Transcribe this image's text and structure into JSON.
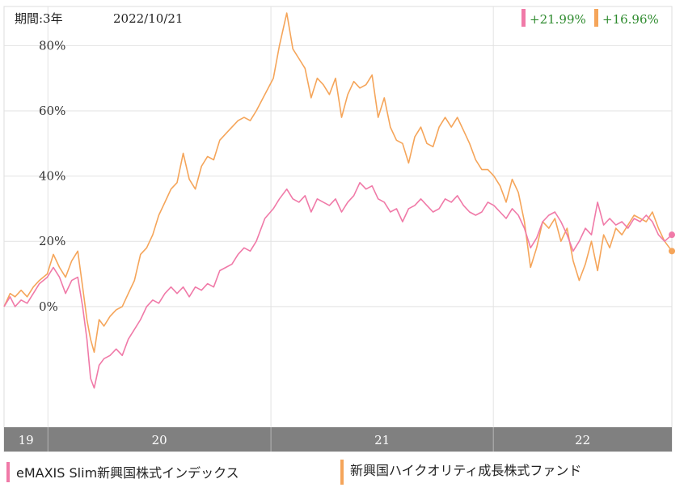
{
  "header": {
    "period_label": "期間:3年",
    "date": "2022/10/21"
  },
  "returns": [
    {
      "color": "#f07aa8",
      "value": "+21.99%"
    },
    {
      "color": "#f5a55a",
      "value": "+16.96%"
    }
  ],
  "chart_data": {
    "type": "line",
    "title": "",
    "xlabel": "",
    "ylabel": "",
    "ylim": [
      -37,
      92
    ],
    "xlim": [
      "2019-10-21",
      "2022-10-21"
    ],
    "yticks": [
      0,
      20,
      40,
      60,
      80
    ],
    "ytick_labels": [
      "0%",
      "20%",
      "40%",
      "60%",
      "80%"
    ],
    "xtick_labels": [
      "19",
      "20",
      "21",
      "22"
    ],
    "year_dividers": [
      "2020-01-01",
      "2021-01-01",
      "2022-01-01"
    ],
    "grid": true,
    "legend_position": "bottom",
    "series": [
      {
        "name": "eMAXIS Slim新興国株式インデックス",
        "color": "#f07aa8",
        "points": [
          [
            "2019-10-21",
            0
          ],
          [
            "2019-10-31",
            3
          ],
          [
            "2019-11-08",
            0
          ],
          [
            "2019-11-18",
            2
          ],
          [
            "2019-11-28",
            1
          ],
          [
            "2019-12-08",
            4
          ],
          [
            "2019-12-18",
            7
          ],
          [
            "2019-12-31",
            9
          ],
          [
            "2020-01-10",
            12
          ],
          [
            "2020-01-20",
            9
          ],
          [
            "2020-01-30",
            4
          ],
          [
            "2020-02-09",
            8
          ],
          [
            "2020-02-19",
            9
          ],
          [
            "2020-02-27",
            0
          ],
          [
            "2020-03-05",
            -10
          ],
          [
            "2020-03-11",
            -22
          ],
          [
            "2020-03-17",
            -25
          ],
          [
            "2020-03-25",
            -18
          ],
          [
            "2020-04-02",
            -16
          ],
          [
            "2020-04-12",
            -15
          ],
          [
            "2020-04-22",
            -13
          ],
          [
            "2020-05-02",
            -15
          ],
          [
            "2020-05-12",
            -10
          ],
          [
            "2020-05-22",
            -7
          ],
          [
            "2020-06-01",
            -4
          ],
          [
            "2020-06-11",
            0
          ],
          [
            "2020-06-21",
            2
          ],
          [
            "2020-07-01",
            1
          ],
          [
            "2020-07-11",
            4
          ],
          [
            "2020-07-21",
            6
          ],
          [
            "2020-07-31",
            4
          ],
          [
            "2020-08-10",
            6
          ],
          [
            "2020-08-20",
            3
          ],
          [
            "2020-08-30",
            6
          ],
          [
            "2020-09-09",
            5
          ],
          [
            "2020-09-19",
            7
          ],
          [
            "2020-09-29",
            6
          ],
          [
            "2020-10-09",
            11
          ],
          [
            "2020-10-19",
            12
          ],
          [
            "2020-10-29",
            13
          ],
          [
            "2020-11-08",
            16
          ],
          [
            "2020-11-18",
            18
          ],
          [
            "2020-11-28",
            17
          ],
          [
            "2020-12-08",
            20
          ],
          [
            "2020-12-22",
            27
          ],
          [
            "2021-01-05",
            30
          ],
          [
            "2021-01-15",
            33
          ],
          [
            "2021-01-27",
            36
          ],
          [
            "2021-02-06",
            33
          ],
          [
            "2021-02-16",
            32
          ],
          [
            "2021-02-26",
            34
          ],
          [
            "2021-03-08",
            29
          ],
          [
            "2021-03-18",
            33
          ],
          [
            "2021-03-28",
            32
          ],
          [
            "2021-04-07",
            31
          ],
          [
            "2021-04-17",
            33
          ],
          [
            "2021-04-27",
            29
          ],
          [
            "2021-05-07",
            32
          ],
          [
            "2021-05-17",
            34
          ],
          [
            "2021-05-27",
            38
          ],
          [
            "2021-06-06",
            36
          ],
          [
            "2021-06-16",
            37
          ],
          [
            "2021-06-26",
            33
          ],
          [
            "2021-07-06",
            32
          ],
          [
            "2021-07-16",
            29
          ],
          [
            "2021-07-26",
            30
          ],
          [
            "2021-08-05",
            26
          ],
          [
            "2021-08-15",
            30
          ],
          [
            "2021-08-25",
            31
          ],
          [
            "2021-09-04",
            33
          ],
          [
            "2021-09-14",
            31
          ],
          [
            "2021-09-24",
            29
          ],
          [
            "2021-10-04",
            30
          ],
          [
            "2021-10-14",
            33
          ],
          [
            "2021-10-24",
            32
          ],
          [
            "2021-11-03",
            34
          ],
          [
            "2021-11-13",
            31
          ],
          [
            "2021-11-23",
            29
          ],
          [
            "2021-12-03",
            28
          ],
          [
            "2021-12-13",
            29
          ],
          [
            "2021-12-23",
            32
          ],
          [
            "2022-01-02",
            31
          ],
          [
            "2022-01-12",
            29
          ],
          [
            "2022-01-22",
            27
          ],
          [
            "2022-02-01",
            30
          ],
          [
            "2022-02-11",
            28
          ],
          [
            "2022-02-21",
            24
          ],
          [
            "2022-03-03",
            18
          ],
          [
            "2022-03-13",
            21
          ],
          [
            "2022-03-23",
            26
          ],
          [
            "2022-04-02",
            28
          ],
          [
            "2022-04-12",
            29
          ],
          [
            "2022-04-22",
            26
          ],
          [
            "2022-05-02",
            22
          ],
          [
            "2022-05-12",
            17
          ],
          [
            "2022-05-22",
            20
          ],
          [
            "2022-06-01",
            24
          ],
          [
            "2022-06-11",
            22
          ],
          [
            "2022-06-21",
            32
          ],
          [
            "2022-07-01",
            25
          ],
          [
            "2022-07-11",
            27
          ],
          [
            "2022-07-21",
            25
          ],
          [
            "2022-07-31",
            26
          ],
          [
            "2022-08-10",
            24
          ],
          [
            "2022-08-20",
            27
          ],
          [
            "2022-08-30",
            26
          ],
          [
            "2022-09-09",
            28
          ],
          [
            "2022-09-19",
            26
          ],
          [
            "2022-09-29",
            22
          ],
          [
            "2022-10-09",
            20
          ],
          [
            "2022-10-21",
            22
          ]
        ]
      },
      {
        "name": "新興国ハイクオリティ成長株式ファンド",
        "color": "#f5a55a",
        "points": [
          [
            "2019-10-21",
            0
          ],
          [
            "2019-10-31",
            4
          ],
          [
            "2019-11-08",
            3
          ],
          [
            "2019-11-18",
            5
          ],
          [
            "2019-11-28",
            3
          ],
          [
            "2019-12-08",
            6
          ],
          [
            "2019-12-18",
            8
          ],
          [
            "2019-12-31",
            10
          ],
          [
            "2020-01-10",
            16
          ],
          [
            "2020-01-20",
            12
          ],
          [
            "2020-01-30",
            9
          ],
          [
            "2020-02-09",
            14
          ],
          [
            "2020-02-19",
            17
          ],
          [
            "2020-02-27",
            6
          ],
          [
            "2020-03-05",
            -4
          ],
          [
            "2020-03-11",
            -10
          ],
          [
            "2020-03-17",
            -14
          ],
          [
            "2020-03-25",
            -4
          ],
          [
            "2020-04-02",
            -6
          ],
          [
            "2020-04-12",
            -3
          ],
          [
            "2020-04-22",
            -1
          ],
          [
            "2020-05-02",
            0
          ],
          [
            "2020-05-12",
            4
          ],
          [
            "2020-05-22",
            8
          ],
          [
            "2020-06-01",
            16
          ],
          [
            "2020-06-11",
            18
          ],
          [
            "2020-06-21",
            22
          ],
          [
            "2020-07-01",
            28
          ],
          [
            "2020-07-11",
            32
          ],
          [
            "2020-07-21",
            36
          ],
          [
            "2020-07-31",
            38
          ],
          [
            "2020-08-10",
            47
          ],
          [
            "2020-08-20",
            39
          ],
          [
            "2020-08-30",
            36
          ],
          [
            "2020-09-09",
            43
          ],
          [
            "2020-09-19",
            46
          ],
          [
            "2020-09-29",
            45
          ],
          [
            "2020-10-09",
            51
          ],
          [
            "2020-10-19",
            53
          ],
          [
            "2020-10-29",
            55
          ],
          [
            "2020-11-08",
            57
          ],
          [
            "2020-11-18",
            58
          ],
          [
            "2020-11-28",
            57
          ],
          [
            "2020-12-08",
            60
          ],
          [
            "2020-12-22",
            65
          ],
          [
            "2021-01-05",
            70
          ],
          [
            "2021-01-15",
            80
          ],
          [
            "2021-01-27",
            90
          ],
          [
            "2021-02-06",
            79
          ],
          [
            "2021-02-16",
            76
          ],
          [
            "2021-02-26",
            73
          ],
          [
            "2021-03-08",
            64
          ],
          [
            "2021-03-18",
            70
          ],
          [
            "2021-03-28",
            68
          ],
          [
            "2021-04-07",
            65
          ],
          [
            "2021-04-17",
            70
          ],
          [
            "2021-04-27",
            58
          ],
          [
            "2021-05-07",
            65
          ],
          [
            "2021-05-17",
            69
          ],
          [
            "2021-05-27",
            67
          ],
          [
            "2021-06-06",
            68
          ],
          [
            "2021-06-16",
            71
          ],
          [
            "2021-06-26",
            58
          ],
          [
            "2021-07-06",
            64
          ],
          [
            "2021-07-16",
            55
          ],
          [
            "2021-07-26",
            51
          ],
          [
            "2021-08-05",
            50
          ],
          [
            "2021-08-15",
            44
          ],
          [
            "2021-08-25",
            52
          ],
          [
            "2021-09-04",
            55
          ],
          [
            "2021-09-14",
            50
          ],
          [
            "2021-09-24",
            49
          ],
          [
            "2021-10-04",
            55
          ],
          [
            "2021-10-14",
            58
          ],
          [
            "2021-10-24",
            55
          ],
          [
            "2021-11-03",
            58
          ],
          [
            "2021-11-13",
            54
          ],
          [
            "2021-11-23",
            50
          ],
          [
            "2021-12-03",
            45
          ],
          [
            "2021-12-13",
            42
          ],
          [
            "2021-12-23",
            42
          ],
          [
            "2022-01-02",
            40
          ],
          [
            "2022-01-12",
            37
          ],
          [
            "2022-01-22",
            32
          ],
          [
            "2022-02-01",
            39
          ],
          [
            "2022-02-11",
            35
          ],
          [
            "2022-02-21",
            26
          ],
          [
            "2022-03-03",
            12
          ],
          [
            "2022-03-13",
            18
          ],
          [
            "2022-03-23",
            26
          ],
          [
            "2022-04-02",
            24
          ],
          [
            "2022-04-12",
            27
          ],
          [
            "2022-04-22",
            20
          ],
          [
            "2022-05-02",
            24
          ],
          [
            "2022-05-12",
            14
          ],
          [
            "2022-05-22",
            8
          ],
          [
            "2022-06-01",
            13
          ],
          [
            "2022-06-11",
            20
          ],
          [
            "2022-06-21",
            11
          ],
          [
            "2022-07-01",
            22
          ],
          [
            "2022-07-11",
            18
          ],
          [
            "2022-07-21",
            24
          ],
          [
            "2022-07-31",
            22
          ],
          [
            "2022-08-10",
            25
          ],
          [
            "2022-08-20",
            28
          ],
          [
            "2022-08-30",
            27
          ],
          [
            "2022-09-09",
            26
          ],
          [
            "2022-09-19",
            29
          ],
          [
            "2022-09-29",
            24
          ],
          [
            "2022-10-09",
            20
          ],
          [
            "2022-10-21",
            17
          ]
        ]
      }
    ]
  }
}
